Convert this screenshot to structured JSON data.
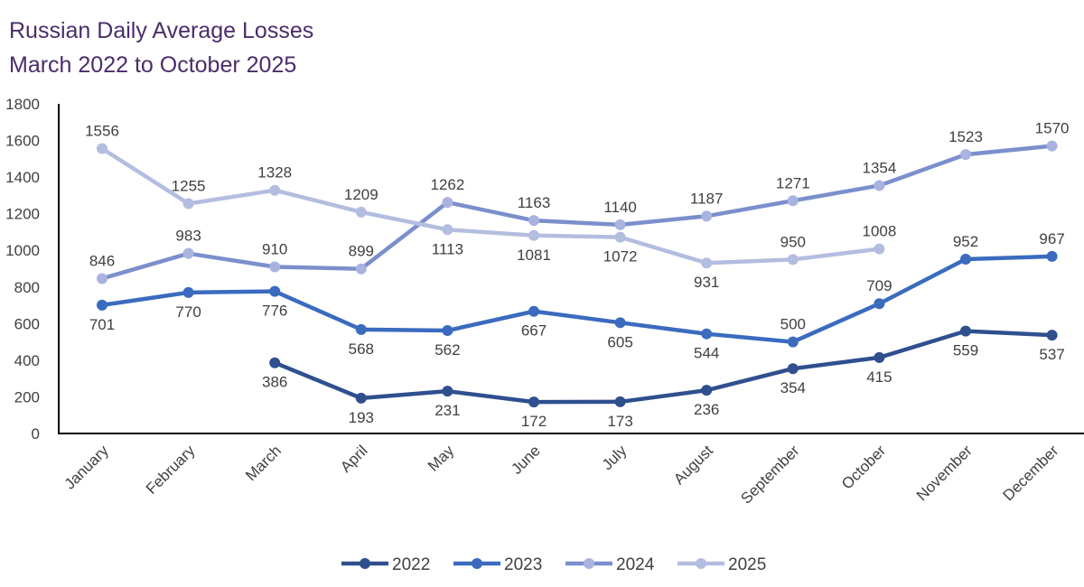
{
  "chart_data": {
    "type": "line",
    "title": [
      "Russian Daily Average Losses",
      "March 2022 to October 2025"
    ],
    "categories": [
      "January",
      "February",
      "March",
      "April",
      "May",
      "June",
      "July",
      "August",
      "September",
      "October",
      "November",
      "December"
    ],
    "ylim": [
      0,
      1800
    ],
    "yticks": [
      "0",
      "200",
      "400",
      "600",
      "800",
      "1000",
      "1200",
      "1400",
      "1600",
      "1800"
    ],
    "grid": false,
    "legend": "bottom",
    "series": [
      {
        "name": "2022",
        "color": "#2f4f8f",
        "marker": "#2f4f8f",
        "values": [
          null,
          null,
          386,
          193,
          231,
          172,
          173,
          236,
          354,
          415,
          559,
          537
        ]
      },
      {
        "name": "2023",
        "color": "#3a6bbf",
        "marker": "#3a6bbf",
        "values": [
          701,
          770,
          776,
          568,
          562,
          667,
          605,
          544,
          500,
          709,
          952,
          967
        ]
      },
      {
        "name": "2024",
        "color": "#7b8fcc",
        "marker": "#a8b3e0",
        "values": [
          846,
          983,
          910,
          899,
          1262,
          1163,
          1140,
          1187,
          1271,
          1354,
          1523,
          1570
        ]
      },
      {
        "name": "2025",
        "color": "#b3bde0",
        "marker": "#b3bde0",
        "values": [
          1556,
          1255,
          1328,
          1209,
          1113,
          1081,
          1072,
          931,
          950,
          1008,
          null,
          null
        ]
      }
    ]
  }
}
